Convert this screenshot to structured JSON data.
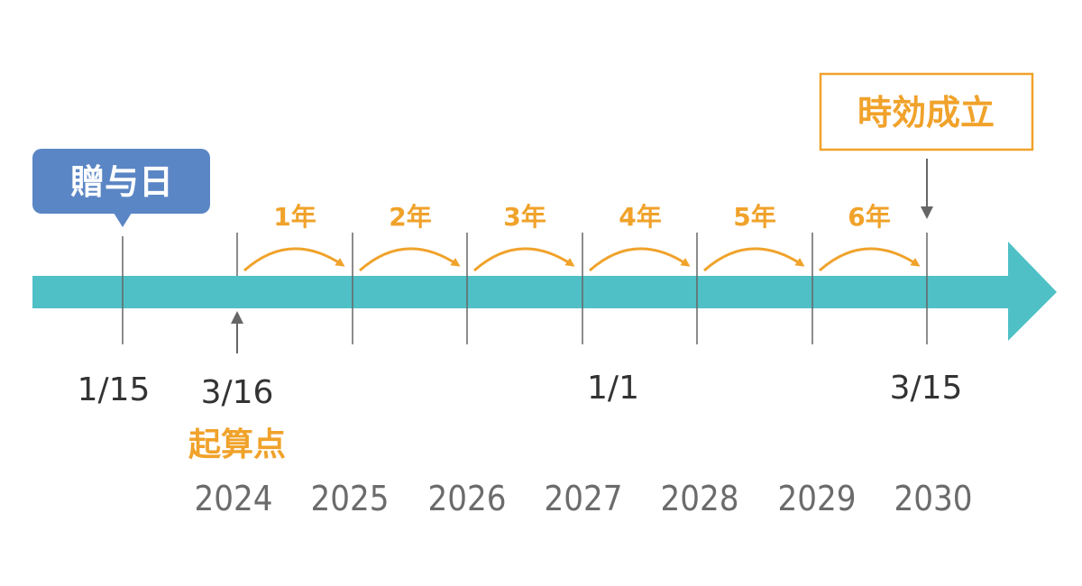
{
  "colors": {
    "timeline": "#4fc0c6",
    "accent": "#f0a22a",
    "bubble": "#5b86c5",
    "tick": "#666666",
    "date_text": "#333333",
    "year_text": "#6b6b6b"
  },
  "gift_date": {
    "label": "贈与日",
    "date": "1/15"
  },
  "start_point": {
    "date": "3/16",
    "label": "起算点"
  },
  "mid_date": "1/1",
  "end_point": {
    "label": "時効成立",
    "date": "3/15"
  },
  "years": [
    "2024",
    "2025",
    "2026",
    "2027",
    "2028",
    "2029",
    "2030"
  ],
  "periods": [
    "1年",
    "2年",
    "3年",
    "4年",
    "5年",
    "6年"
  ]
}
